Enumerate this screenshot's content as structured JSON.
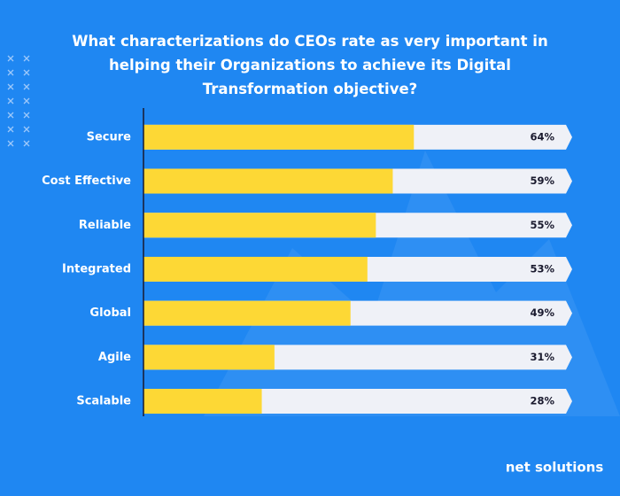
{
  "chart_data": {
    "type": "hbar",
    "title": "What characterizations do CEOs rate as very important in helping their Organizations to achieve its Digital Transformation objective?",
    "categories": [
      "Secure",
      "Cost Effective",
      "Reliable",
      "Integrated",
      "Global",
      "Agile",
      "Scalable"
    ],
    "values": [
      64,
      59,
      55,
      53,
      49,
      31,
      28
    ],
    "value_labels": [
      "64%",
      "59%",
      "55%",
      "53%",
      "49%",
      "31%",
      "28%"
    ],
    "color": "#fdd835",
    "track_color": "#eff1f7",
    "xlim": [
      0,
      100
    ]
  },
  "brand": "net solutions"
}
